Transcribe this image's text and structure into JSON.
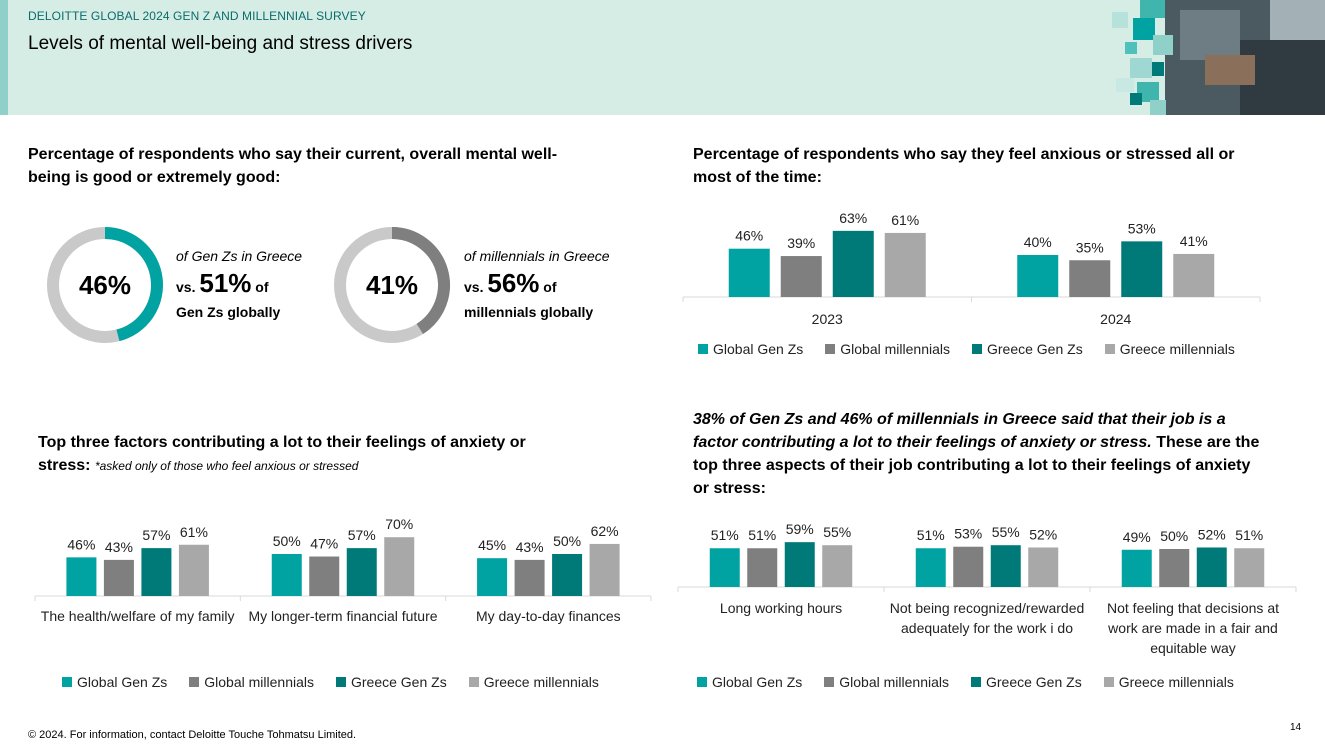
{
  "header": {
    "kicker": "DELOITTE GLOBAL 2024 GEN Z AND MILLENNIAL SURVEY",
    "title": "Levels of mental well-being and stress drivers"
  },
  "footer": {
    "copyright": "© 2024. For information, contact Deloitte Touche Tohmatsu Limited.",
    "page": "14"
  },
  "chart_data": [
    {
      "type": "donut",
      "title": "Percentage of respondents who say their current, overall mental well-being is good or extremely good:",
      "categories": [
        "of Gen Zs in Greece",
        "of millennials in Greece"
      ],
      "values": [
        46,
        41
      ],
      "value_labels": [
        "46%",
        "41%"
      ],
      "colors": [
        "#00a3a1",
        "#7f7f7f"
      ],
      "track_color": "#c9c9c9",
      "comparisons": [
        {
          "prefix": "vs.",
          "figure": "51%",
          "suffix": "of",
          "group": "Gen Zs globally"
        },
        {
          "prefix": "vs.",
          "figure": "56%",
          "suffix": "of",
          "group": "millennials globally"
        }
      ]
    },
    {
      "type": "bar",
      "title": "Percentage of respondents who say they feel anxious or stressed all or most of the time:",
      "categories": [
        "2023",
        "2024"
      ],
      "ylim": [
        0,
        100
      ],
      "series": [
        {
          "name": "Global Gen Zs",
          "color": "#00a3a1",
          "values": [
            46,
            40
          ],
          "value_labels": [
            "46%",
            "40%"
          ]
        },
        {
          "name": "Global millennials",
          "color": "#7f7f7f",
          "values": [
            39,
            35
          ],
          "value_labels": [
            "39%",
            "35%"
          ]
        },
        {
          "name": "Greece Gen Zs",
          "color": "#007a78",
          "values": [
            63,
            53
          ],
          "value_labels": [
            "63%",
            "53%"
          ]
        },
        {
          "name": "Greece millennials",
          "color": "#a8a8a8",
          "values": [
            61,
            41
          ],
          "value_labels": [
            "61%",
            "41%"
          ]
        }
      ]
    },
    {
      "type": "bar",
      "title": "Top three factors contributing a lot to their feelings of anxiety or stress:",
      "note": "*asked only of those who feel anxious or stressed",
      "categories": [
        "The health/welfare of my family",
        "My longer-term financial future",
        "My day-to-day finances"
      ],
      "ylim": [
        0,
        100
      ],
      "series": [
        {
          "name": "Global Gen Zs",
          "color": "#00a3a1",
          "values": [
            46,
            50,
            45
          ],
          "value_labels": [
            "46%",
            "50%",
            "45%"
          ]
        },
        {
          "name": "Global millennials",
          "color": "#7f7f7f",
          "values": [
            43,
            47,
            43
          ],
          "value_labels": [
            "43%",
            "47%",
            "43%"
          ]
        },
        {
          "name": "Greece Gen Zs",
          "color": "#007a78",
          "values": [
            57,
            57,
            50
          ],
          "value_labels": [
            "57%",
            "57%",
            "50%"
          ]
        },
        {
          "name": "Greece millennials",
          "color": "#a8a8a8",
          "values": [
            61,
            70,
            62
          ],
          "value_labels": [
            "61%",
            "70%",
            "62%"
          ]
        }
      ]
    },
    {
      "type": "bar",
      "title_emphasis": "38% of Gen Zs and 46% of millennials in Greece said that their job is a factor contributing a lot to their feelings of anxiety or stress.",
      "title": "These are the top three aspects of their job contributing a lot to their feelings of anxiety or stress:",
      "categories": [
        "Long working hours",
        "Not being recognized/rewarded adequately for the work i do",
        "Not feeling that decisions at work are made in a fair and equitable way"
      ],
      "ylim": [
        0,
        100
      ],
      "series": [
        {
          "name": "Global Gen Zs",
          "color": "#00a3a1",
          "values": [
            51,
            51,
            49
          ],
          "value_labels": [
            "51%",
            "51%",
            "49%"
          ]
        },
        {
          "name": "Global millennials",
          "color": "#7f7f7f",
          "values": [
            51,
            53,
            50
          ],
          "value_labels": [
            "51%",
            "53%",
            "50%"
          ]
        },
        {
          "name": "Greece Gen Zs",
          "color": "#007a78",
          "values": [
            59,
            55,
            52
          ],
          "value_labels": [
            "59%",
            "55%",
            "52%"
          ]
        },
        {
          "name": "Greece millennials",
          "color": "#a8a8a8",
          "values": [
            55,
            52,
            51
          ],
          "value_labels": [
            "55%",
            "52%",
            "51%"
          ]
        }
      ]
    }
  ]
}
